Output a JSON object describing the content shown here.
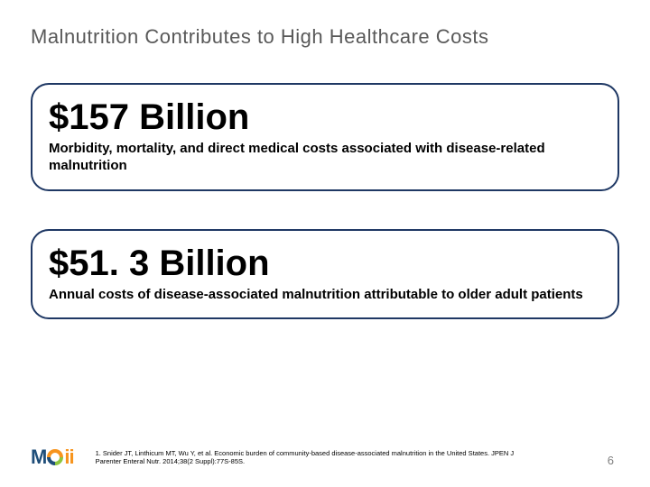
{
  "title": "Malnutrition Contributes to High Healthcare Costs",
  "colors": {
    "title_text": "#595959",
    "box_border": "#1f3864",
    "background": "#ffffff",
    "text": "#000000",
    "page_num": "#808080",
    "logo_blue": "#1f4e79",
    "logo_orange": "#f7941d",
    "logo_green": "#8cc63f"
  },
  "stats": [
    {
      "value": "$157 Billion",
      "description": "Morbidity, mortality, and direct medical costs associated with disease-related malnutrition"
    },
    {
      "value": "$51. 3 Billion",
      "description": "Annual costs of disease-associated malnutrition attributable to older adult patients"
    }
  ],
  "logo": {
    "m": "M",
    "ii": "ii"
  },
  "citation": "1. Snider JT, Linthicum MT, Wu Y, et al. Economic burden of community-based disease-associated malnutrition in the United States. JPEN J Parenter Enteral Nutr. 2014;38(2 Suppl):77S-85S.",
  "page_number": "6",
  "layout": {
    "slide_width": 720,
    "slide_height": 540,
    "border_radius": 20,
    "stat_value_fontsize": 40,
    "stat_desc_fontsize": 15,
    "title_fontsize": 22,
    "citation_fontsize": 7.5
  }
}
